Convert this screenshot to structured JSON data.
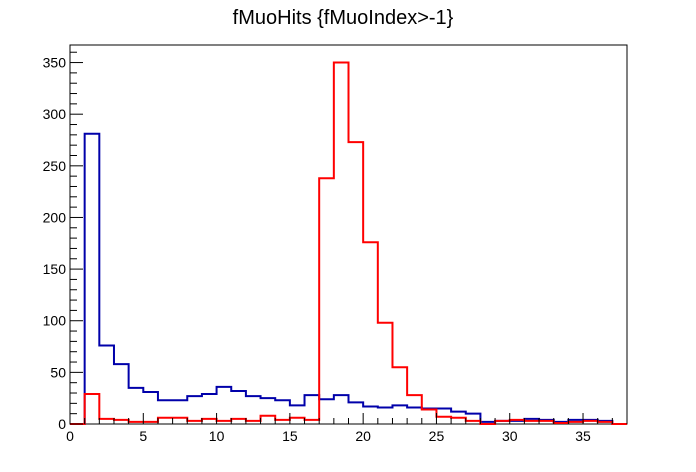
{
  "chart_data": {
    "type": "histogram",
    "title": "fMuoHits {fMuoIndex>-1}",
    "xlabel": "",
    "ylabel": "",
    "xlim": [
      0,
      38
    ],
    "ylim": [
      0,
      367
    ],
    "x_ticks": [
      0,
      5,
      10,
      15,
      20,
      25,
      30,
      35
    ],
    "y_ticks": [
      0,
      50,
      100,
      150,
      200,
      250,
      300,
      350
    ],
    "bin_edges": [
      0,
      1,
      2,
      3,
      4,
      5,
      6,
      7,
      8,
      9,
      10,
      11,
      12,
      13,
      14,
      15,
      16,
      17,
      18,
      19,
      20,
      21,
      22,
      23,
      24,
      25,
      26,
      27,
      28,
      29,
      30,
      31,
      32,
      33,
      34,
      35,
      36,
      37,
      38
    ],
    "series": [
      {
        "color": "#0000aa",
        "values": [
          0,
          281,
          76,
          58,
          35,
          31,
          23,
          23,
          27,
          29,
          36,
          32,
          27,
          25,
          23,
          18,
          28,
          24,
          28,
          21,
          17,
          16,
          18,
          16,
          15,
          15,
          12,
          10,
          2,
          3,
          3,
          5,
          4,
          2,
          4,
          4,
          3,
          0
        ]
      },
      {
        "color": "#ff0000",
        "values": [
          0,
          29,
          5,
          4,
          2,
          2,
          6,
          6,
          3,
          5,
          3,
          5,
          3,
          8,
          4,
          6,
          4,
          238,
          350,
          273,
          176,
          98,
          55,
          28,
          14,
          7,
          6,
          3,
          0,
          3,
          4,
          3,
          3,
          1,
          2,
          3,
          2,
          0
        ]
      }
    ],
    "grid": false,
    "legend": "none"
  }
}
